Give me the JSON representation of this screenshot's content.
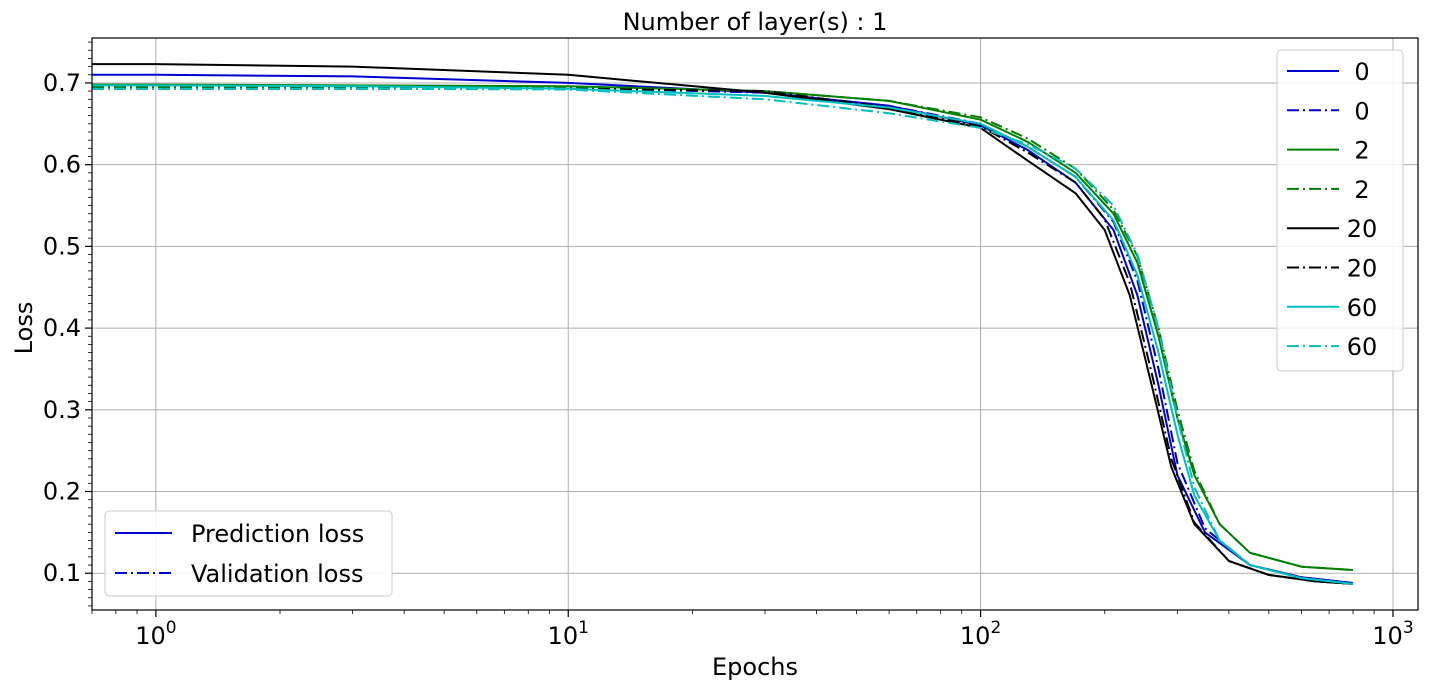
{
  "chart_data": {
    "type": "line",
    "title": "Number of layer(s) : 1",
    "xlabel": "Epochs",
    "ylabel": "Loss",
    "xscale": "log",
    "xlim": [
      0.7,
      1150
    ],
    "ylim": [
      0.055,
      0.755
    ],
    "grid": true,
    "x_ticks": [
      {
        "value": 1,
        "base": "10",
        "exp": "0"
      },
      {
        "value": 10,
        "base": "10",
        "exp": "1"
      },
      {
        "value": 100,
        "base": "10",
        "exp": "2"
      },
      {
        "value": 1000,
        "base": "10",
        "exp": "3"
      }
    ],
    "y_ticks": [
      0.1,
      0.2,
      0.3,
      0.4,
      0.5,
      0.6,
      0.7
    ],
    "legend_series": {
      "placement": "upper right",
      "entries": [
        {
          "label": "0",
          "color": "#0000cc",
          "style": "solid"
        },
        {
          "label": "0",
          "color": "#0000cc",
          "style": "dashdot"
        },
        {
          "label": "2",
          "color": "#007f00",
          "style": "solid"
        },
        {
          "label": "2",
          "color": "#007f00",
          "style": "dashdot"
        },
        {
          "label": "20",
          "color": "#000000",
          "style": "solid"
        },
        {
          "label": "20",
          "color": "#000000",
          "style": "dashdot"
        },
        {
          "label": "60",
          "color": "#00bfbf",
          "style": "solid"
        },
        {
          "label": "60",
          "color": "#00bfbf",
          "style": "dashdot"
        }
      ]
    },
    "legend_style": {
      "placement": "lower left",
      "entries": [
        {
          "label": "Prediction loss",
          "color": "#0000cc",
          "style": "solid"
        },
        {
          "label": "Validation loss",
          "color": "#0000cc",
          "style": "dashdot"
        }
      ]
    },
    "series": [
      {
        "label": "0",
        "style": "solid",
        "color": "#0000cc",
        "x": [
          0.7,
          1,
          3,
          10,
          30,
          60,
          100,
          130,
          170,
          210,
          240,
          270,
          300,
          350,
          450,
          600,
          800
        ],
        "y": [
          0.71,
          0.71,
          0.708,
          0.7,
          0.688,
          0.672,
          0.648,
          0.618,
          0.578,
          0.52,
          0.44,
          0.33,
          0.22,
          0.15,
          0.11,
          0.095,
          0.088
        ]
      },
      {
        "label": "0",
        "style": "dashdot",
        "color": "#0000cc",
        "x": [
          0.7,
          1,
          3,
          10,
          30,
          60,
          100,
          130,
          170,
          210,
          240,
          270,
          300,
          350,
          450,
          600,
          800
        ],
        "y": [
          0.695,
          0.695,
          0.695,
          0.694,
          0.688,
          0.672,
          0.65,
          0.622,
          0.585,
          0.53,
          0.458,
          0.35,
          0.235,
          0.155,
          0.11,
          0.095,
          0.088
        ]
      },
      {
        "label": "2",
        "style": "solid",
        "color": "#007f00",
        "x": [
          0.7,
          1,
          3,
          10,
          30,
          60,
          100,
          130,
          170,
          210,
          240,
          270,
          300,
          330,
          380,
          450,
          600,
          800
        ],
        "y": [
          0.698,
          0.698,
          0.697,
          0.696,
          0.69,
          0.678,
          0.655,
          0.628,
          0.59,
          0.54,
          0.48,
          0.39,
          0.29,
          0.22,
          0.16,
          0.125,
          0.108,
          0.104
        ]
      },
      {
        "label": "2",
        "style": "dashdot",
        "color": "#007f00",
        "x": [
          0.7,
          1,
          3,
          10,
          30,
          60,
          100,
          130,
          170,
          210,
          240,
          270,
          300,
          330,
          380,
          450,
          600,
          800
        ],
        "y": [
          0.695,
          0.695,
          0.695,
          0.695,
          0.69,
          0.678,
          0.658,
          0.632,
          0.595,
          0.545,
          0.488,
          0.4,
          0.3,
          0.225,
          0.16,
          0.125,
          0.108,
          0.104
        ]
      },
      {
        "label": "20",
        "style": "solid",
        "color": "#000000",
        "x": [
          0.7,
          1,
          3,
          10,
          30,
          60,
          100,
          130,
          170,
          200,
          230,
          260,
          290,
          330,
          400,
          500,
          650,
          800
        ],
        "y": [
          0.723,
          0.723,
          0.72,
          0.71,
          0.688,
          0.668,
          0.645,
          0.605,
          0.565,
          0.52,
          0.44,
          0.33,
          0.23,
          0.16,
          0.115,
          0.098,
          0.09,
          0.087
        ]
      },
      {
        "label": "20",
        "style": "dashdot",
        "color": "#000000",
        "x": [
          0.7,
          1,
          3,
          10,
          30,
          60,
          100,
          130,
          170,
          200,
          230,
          260,
          290,
          330,
          400,
          500,
          650,
          800
        ],
        "y": [
          0.693,
          0.693,
          0.693,
          0.693,
          0.69,
          0.67,
          0.647,
          0.615,
          0.578,
          0.533,
          0.455,
          0.345,
          0.24,
          0.162,
          0.115,
          0.098,
          0.09,
          0.087
        ]
      },
      {
        "label": "60",
        "style": "solid",
        "color": "#00bfbf",
        "x": [
          0.7,
          1,
          3,
          10,
          30,
          60,
          100,
          130,
          170,
          210,
          240,
          270,
          300,
          330,
          380,
          450,
          600,
          800
        ],
        "y": [
          0.697,
          0.697,
          0.696,
          0.693,
          0.684,
          0.67,
          0.65,
          0.622,
          0.585,
          0.532,
          0.465,
          0.37,
          0.27,
          0.195,
          0.14,
          0.11,
          0.094,
          0.087
        ]
      },
      {
        "label": "60",
        "style": "dashdot",
        "color": "#00bfbf",
        "x": [
          0.7,
          1,
          3,
          10,
          30,
          60,
          100,
          130,
          170,
          210,
          240,
          270,
          300,
          330,
          380,
          450,
          600,
          800
        ],
        "y": [
          0.693,
          0.693,
          0.693,
          0.692,
          0.68,
          0.663,
          0.645,
          0.625,
          0.595,
          0.55,
          0.49,
          0.4,
          0.29,
          0.205,
          0.14,
          0.11,
          0.094,
          0.087
        ]
      }
    ]
  }
}
